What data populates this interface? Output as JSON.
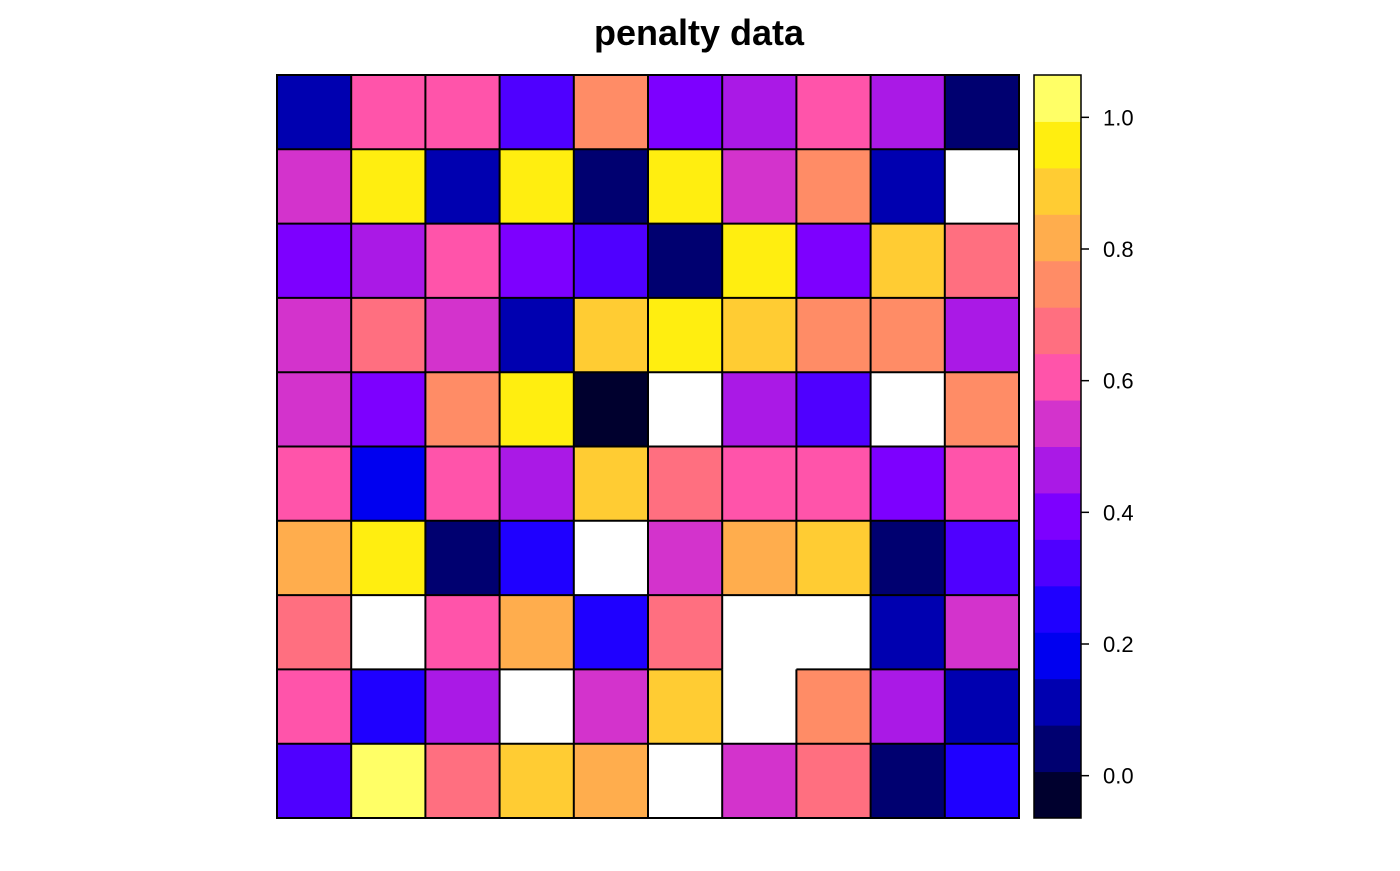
{
  "chart_data": {
    "type": "heatmap",
    "title": "penalty data",
    "xlabel": "",
    "ylabel": "",
    "rows": 10,
    "cols": 10,
    "value_range": [
      -0.0643,
      1.0643
    ],
    "colorbar": {
      "ticks": [
        0.0,
        0.2,
        0.4,
        0.6,
        0.8,
        1.0
      ],
      "tick_labels": [
        "0.0",
        "0.2",
        "0.4",
        "0.6",
        "0.8",
        "1.0"
      ],
      "bin_colors": [
        "#00002E",
        "#000070",
        "#0000B0",
        "#0000F0",
        "#1F00FF",
        "#4F00FF",
        "#7D00FF",
        "#AA19E6",
        "#D333CC",
        "#FF54AA",
        "#FF6F80",
        "#FF8C66",
        "#FFAD4D",
        "#FFCC33",
        "#FFEE10",
        "#FFFF66"
      ]
    },
    "missing_color": "#FFFFFF",
    "values": [
      [
        0.09,
        0.6,
        0.6,
        0.33,
        0.77,
        0.4,
        0.47,
        0.6,
        0.47,
        0.05
      ],
      [
        0.53,
        0.99,
        0.09,
        0.99,
        0.05,
        0.99,
        0.53,
        0.77,
        0.09,
        null
      ],
      [
        0.4,
        0.47,
        0.6,
        0.4,
        0.33,
        0.05,
        0.99,
        0.4,
        0.9,
        0.68
      ],
      [
        0.53,
        0.68,
        0.53,
        0.09,
        0.9,
        0.99,
        0.9,
        0.77,
        0.77,
        0.47
      ],
      [
        0.53,
        0.4,
        0.77,
        0.99,
        -0.02,
        null,
        0.47,
        0.33,
        null,
        0.77
      ],
      [
        0.6,
        0.16,
        0.6,
        0.47,
        0.9,
        0.68,
        0.6,
        0.6,
        0.4,
        0.6
      ],
      [
        0.84,
        0.99,
        0.05,
        0.26,
        null,
        0.53,
        0.84,
        0.9,
        0.05,
        0.33
      ],
      [
        0.68,
        null,
        0.6,
        0.84,
        0.26,
        0.68,
        null,
        null,
        0.09,
        0.53
      ],
      [
        0.6,
        0.26,
        0.47,
        null,
        0.53,
        0.9,
        null,
        0.77,
        0.47,
        0.09
      ],
      [
        0.33,
        1.04,
        0.68,
        0.9,
        0.84,
        null,
        0.53,
        0.68,
        0.05,
        0.26
      ]
    ],
    "grid": false,
    "legend": "colorbar-right"
  }
}
